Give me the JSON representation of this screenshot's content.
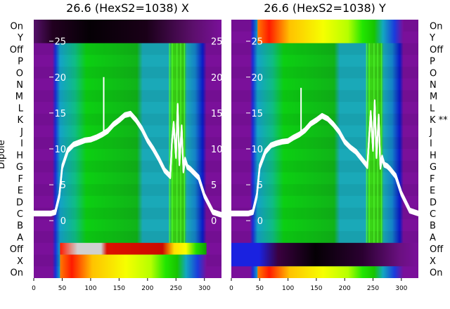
{
  "chart_data": [
    {
      "type": "heatmap",
      "title": "26.6 (HexS2=1038) X",
      "ylabel": "Dipole",
      "xlim": [
        0,
        330
      ],
      "ylim": [
        -8,
        28
      ],
      "xticks": [
        0,
        50,
        100,
        150,
        200,
        250,
        300
      ],
      "yticks": [
        0,
        5,
        10,
        15,
        20,
        25
      ],
      "row_labels": [
        "On",
        "Y",
        "Off",
        "P",
        "O",
        "N",
        "M",
        "L",
        "K",
        "J",
        "I",
        "H",
        "G",
        "F",
        "E",
        "D",
        "C",
        "B",
        "A",
        "Off",
        "X",
        "On"
      ],
      "overlay_line": {
        "x": [
          0,
          30,
          38,
          45,
          50,
          60,
          70,
          80,
          90,
          100,
          110,
          120,
          130,
          140,
          150,
          160,
          170,
          180,
          190,
          200,
          210,
          220,
          230,
          240,
          243,
          246,
          250,
          253,
          256,
          260,
          263,
          266,
          270,
          275,
          280,
          290,
          300,
          315,
          330
        ],
        "y": [
          1.0,
          1.0,
          1.2,
          3.5,
          7.5,
          9.8,
          10.6,
          10.9,
          11.2,
          11.3,
          11.6,
          12.0,
          12.5,
          13.4,
          14.0,
          14.7,
          14.9,
          14.0,
          12.8,
          11.2,
          10.0,
          8.6,
          7.0,
          6.2,
          11.0,
          13.5,
          9.0,
          16.0,
          8.0,
          13.0,
          7.0,
          8.5,
          7.5,
          7.2,
          6.8,
          6.0,
          3.5,
          1.2,
          0.8
        ]
      }
    },
    {
      "type": "heatmap",
      "title": "26.6 (HexS2=1038) Y",
      "xlim": [
        0,
        330
      ],
      "ylim": [
        -8,
        28
      ],
      "xticks": [
        0,
        50,
        100,
        150,
        200,
        250,
        300
      ],
      "yticks": [
        0,
        5,
        10,
        15,
        20,
        25
      ],
      "row_labels": [
        "On",
        "Y",
        "Off",
        "P",
        "O",
        "N",
        "M",
        "L",
        "K **",
        "J",
        "I",
        "H",
        "G",
        "F",
        "E",
        "D",
        "C",
        "B",
        "A",
        "Off",
        "X",
        "On"
      ],
      "overlay_line": {
        "x": [
          0,
          30,
          38,
          45,
          50,
          60,
          70,
          80,
          90,
          100,
          110,
          120,
          130,
          140,
          150,
          160,
          170,
          180,
          190,
          200,
          210,
          220,
          230,
          240,
          243,
          246,
          250,
          253,
          256,
          260,
          263,
          266,
          270,
          275,
          280,
          290,
          300,
          315,
          330
        ],
        "y": [
          1.0,
          1.0,
          1.2,
          3.5,
          7.5,
          9.6,
          10.5,
          10.8,
          11.0,
          11.1,
          11.6,
          12.0,
          12.6,
          13.5,
          14.0,
          14.6,
          14.2,
          13.4,
          12.4,
          11.0,
          10.2,
          9.6,
          8.6,
          7.6,
          11.5,
          15.0,
          10.0,
          16.5,
          9.0,
          14.5,
          7.5,
          8.8,
          7.8,
          7.6,
          7.2,
          6.2,
          3.8,
          1.4,
          1.0
        ]
      }
    }
  ]
}
